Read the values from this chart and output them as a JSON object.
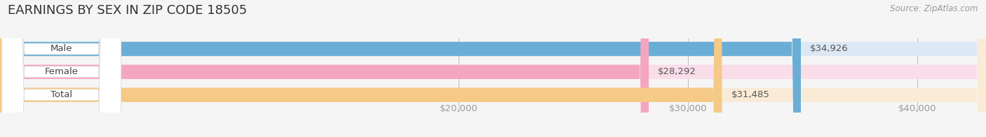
{
  "title": "EARNINGS BY SEX IN ZIP CODE 18505",
  "source": "Source: ZipAtlas.com",
  "categories": [
    "Male",
    "Female",
    "Total"
  ],
  "values": [
    34926,
    28292,
    31485
  ],
  "bar_colors": [
    "#6aaed6",
    "#f4a6c0",
    "#f5c986"
  ],
  "bar_bg_colors": [
    "#dde8f5",
    "#f9dde9",
    "#faebd7"
  ],
  "value_labels": [
    "$34,926",
    "$28,292",
    "$31,485"
  ],
  "tick_labels": [
    "$20,000",
    "$30,000",
    "$40,000"
  ],
  "tick_values": [
    20000,
    30000,
    40000
  ],
  "xmin": 0,
  "xmax": 43000,
  "background_color": "#f5f5f5",
  "title_fontsize": 13,
  "bar_height": 0.62,
  "label_fontsize": 9.5,
  "value_fontsize": 9.5,
  "source_fontsize": 8.5
}
